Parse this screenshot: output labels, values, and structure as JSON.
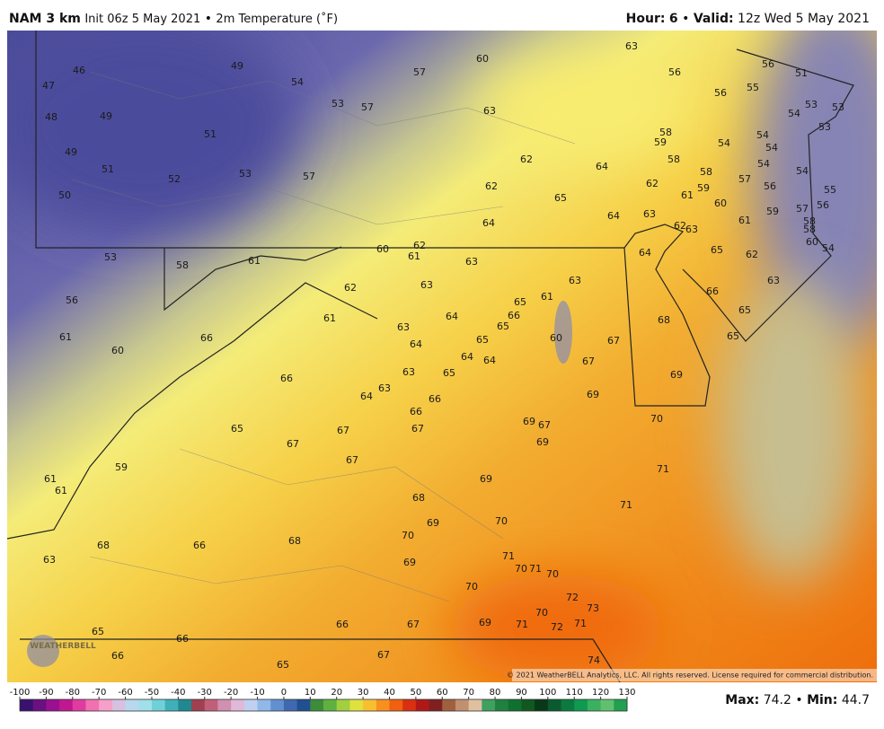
{
  "header": {
    "model": "NAM 3 km",
    "init": "Init 06z 5 May 2021",
    "separator": "•",
    "field": "2m Temperature (˚F)",
    "hour_label": "Hour:",
    "hour": 6,
    "valid_label": "Valid:",
    "valid": "12z Wed 5 May 2021"
  },
  "map": {
    "labels": [
      46,
      49,
      47,
      54,
      57,
      60,
      63,
      56,
      56,
      51,
      48,
      49,
      53,
      57,
      63,
      56,
      55,
      54,
      53,
      53,
      51,
      58,
      59,
      54,
      54,
      54,
      53,
      49,
      62,
      64,
      58,
      54,
      51,
      52,
      53,
      57,
      58,
      57,
      54,
      62,
      65,
      62,
      59,
      61,
      56,
      55,
      50,
      60,
      57,
      56,
      64,
      64,
      63,
      61,
      59,
      58,
      62,
      63,
      58,
      60,
      54,
      60,
      62,
      61,
      63,
      65,
      62,
      64,
      53,
      58,
      61,
      62,
      63,
      66,
      63,
      56,
      65,
      61,
      63,
      64,
      66,
      65,
      61,
      63,
      65,
      68,
      61,
      66,
      65,
      60,
      67,
      65,
      60,
      64,
      64,
      64,
      67,
      63,
      65,
      69,
      66,
      63,
      64,
      66,
      69,
      66,
      67,
      65,
      67,
      69,
      67,
      70,
      67,
      69,
      67,
      59,
      71,
      69,
      61,
      61,
      68,
      71,
      69,
      70,
      70,
      68,
      66,
      68,
      63,
      69,
      71,
      70,
      71,
      70,
      70,
      72,
      73,
      70,
      69,
      71,
      72,
      71,
      66,
      67,
      65,
      66,
      66,
      67,
      74,
      65
    ],
    "watermark": "WEATHERBELL",
    "copyright": "© 2021 WeatherBELL Analytics, LLC. All rights reserved. License required for commercial distribution."
  },
  "colorbar": {
    "ticks": [
      -100,
      -90,
      -80,
      -70,
      -60,
      -50,
      -40,
      -30,
      -20,
      -10,
      0,
      10,
      20,
      30,
      40,
      50,
      60,
      70,
      80,
      90,
      100,
      110,
      120,
      130
    ]
  },
  "stats": {
    "max_label": "Max:",
    "max": 74.2,
    "min_label": "Min:",
    "min": 44.7
  }
}
